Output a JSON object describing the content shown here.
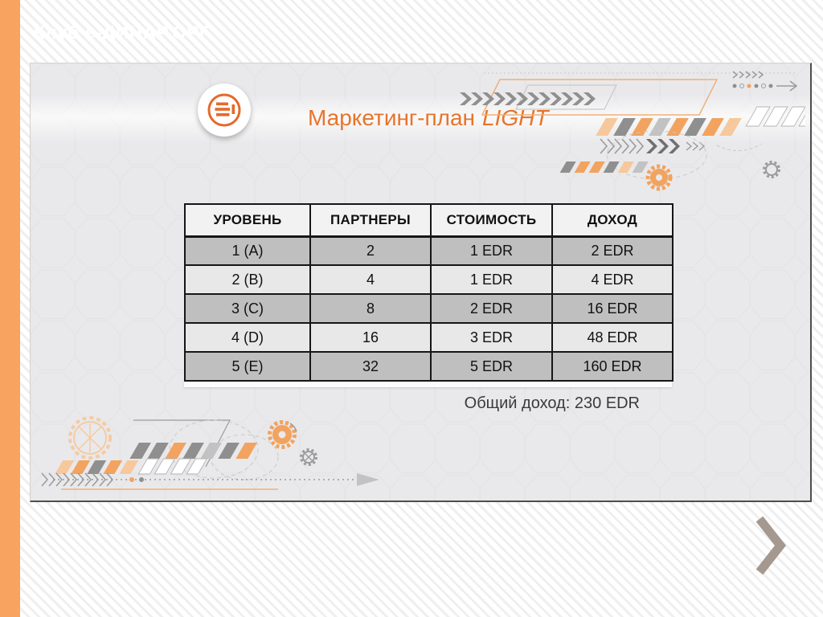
{
  "theme": {
    "accent_orange": "#f9a360",
    "title_orange": "#e8742a",
    "chevron_color": "#a5988e",
    "row_dark": "#bfbfbf",
    "row_light": "#e8e8e8",
    "header_bg": "#f2f2f2"
  },
  "page": {
    "header_title": "Клуб е-ДИНАР.ОРГ"
  },
  "slide": {
    "logo_icon": "e-dinar-circle-logo",
    "title": {
      "main": "Маркетинг-план",
      "emphasis": "LIGHT"
    },
    "table": {
      "columns": [
        "УРОВЕНЬ",
        "ПАРТНЕРЫ",
        "СТОИМОСТЬ",
        "ДОХОД"
      ],
      "rows": [
        [
          "1 (A)",
          "2",
          "1 EDR",
          "2 EDR"
        ],
        [
          "2 (B)",
          "4",
          "1 EDR",
          "4 EDR"
        ],
        [
          "3 (C)",
          "8",
          "2 EDR",
          "16 EDR"
        ],
        [
          "4 (D)",
          "16",
          "3 EDR",
          "48 EDR"
        ],
        [
          "5 (E)",
          "32",
          "5 EDR",
          "160 EDR"
        ]
      ]
    },
    "total_label": "Общий доход: 230 EDR"
  },
  "chart_data": {
    "type": "table",
    "title": "Маркетинг-план LIGHT",
    "columns": [
      "УРОВЕНЬ",
      "ПАРТНЕРЫ",
      "СТОИМОСТЬ",
      "ДОХОД"
    ],
    "rows": [
      [
        "1 (A)",
        2,
        "1 EDR",
        "2 EDR"
      ],
      [
        "2 (B)",
        4,
        "1 EDR",
        "4 EDR"
      ],
      [
        "3 (C)",
        8,
        "2 EDR",
        "16 EDR"
      ],
      [
        "4 (D)",
        16,
        "3 EDR",
        "48 EDR"
      ],
      [
        "5 (E)",
        32,
        "5 EDR",
        "160 EDR"
      ]
    ],
    "total": "Общий доход: 230 EDR",
    "total_edr": 230
  }
}
